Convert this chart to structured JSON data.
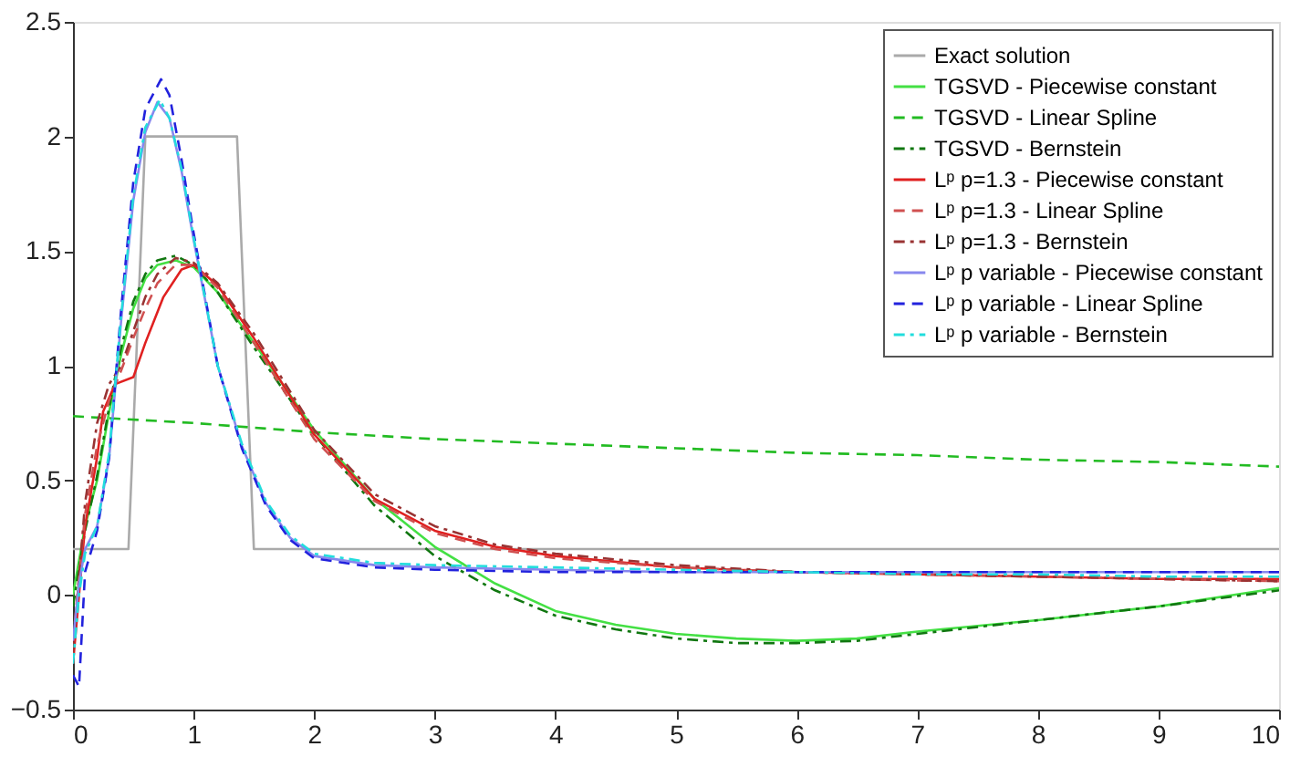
{
  "chart_data": {
    "type": "line",
    "xlim": [
      0,
      10
    ],
    "ylim": [
      -0.5,
      2.5
    ],
    "xticks": [
      0,
      1,
      2,
      3,
      4,
      5,
      6,
      7,
      8,
      9,
      10
    ],
    "yticks": [
      -0.5,
      0,
      0.5,
      1,
      1.5,
      2,
      2.5
    ],
    "grid": false,
    "legend": "top right",
    "marker": "none",
    "series": [
      {
        "name": "Exact solution",
        "color": "#aaaaaa",
        "line_style": "solid",
        "x": [
          0,
          0.46,
          0.6,
          1.36,
          1.5,
          10
        ],
        "values": [
          0.2,
          0.2,
          2,
          2,
          0.2,
          0.2
        ]
      },
      {
        "name": "TGSVD - Piecewise constant",
        "color": "#44e044",
        "line_style": "solid",
        "x": [
          0,
          0.1,
          0.2,
          0.3,
          0.4,
          0.5,
          0.6,
          0.7,
          0.85,
          1,
          1.2,
          1.5,
          2,
          2.5,
          3,
          3.5,
          4,
          4.5,
          5,
          5.5,
          6,
          6.5,
          7,
          8,
          9,
          10
        ],
        "values": [
          0,
          0.3,
          0.5,
          0.8,
          1.05,
          1.25,
          1.38,
          1.44,
          1.46,
          1.43,
          1.32,
          1.1,
          0.72,
          0.42,
          0.21,
          0.05,
          -0.07,
          -0.13,
          -0.17,
          -0.19,
          -0.2,
          -0.19,
          -0.16,
          -0.11,
          -0.05,
          0.03
        ]
      },
      {
        "name": "TGSVD - Linear Spline",
        "color": "#22bb22",
        "line_style": "dashed",
        "x": [
          0,
          1,
          2,
          3,
          4,
          5,
          6,
          7,
          8,
          9,
          10
        ],
        "values": [
          0.78,
          0.75,
          0.71,
          0.68,
          0.66,
          0.64,
          0.62,
          0.61,
          0.59,
          0.58,
          0.56
        ]
      },
      {
        "name": "TGSVD - Bernstein",
        "color": "#117711",
        "line_style": "dashdot",
        "x": [
          0,
          0.1,
          0.2,
          0.3,
          0.4,
          0.5,
          0.6,
          0.7,
          0.85,
          1,
          1.2,
          1.5,
          2,
          2.5,
          3,
          3.5,
          4,
          4.5,
          5,
          5.5,
          6,
          6.5,
          7,
          8,
          9,
          10
        ],
        "values": [
          -0.05,
          0.28,
          0.52,
          0.82,
          1.08,
          1.28,
          1.4,
          1.46,
          1.48,
          1.44,
          1.32,
          1.08,
          0.7,
          0.39,
          0.17,
          0.02,
          -0.09,
          -0.15,
          -0.19,
          -0.21,
          -0.21,
          -0.2,
          -0.17,
          -0.11,
          -0.05,
          0.02
        ]
      },
      {
        "name": "Lᵖ p=1.3 - Piecewise constant",
        "color": "#e02020",
        "line_style": "solid",
        "x": [
          0,
          0.1,
          0.2,
          0.25,
          0.35,
          0.5,
          0.6,
          0.75,
          0.9,
          1,
          1.2,
          1.5,
          2,
          2.5,
          3,
          3.5,
          4,
          5,
          6,
          7,
          8,
          9,
          10
        ],
        "values": [
          -0.3,
          0.3,
          0.6,
          0.8,
          0.92,
          0.95,
          1.1,
          1.3,
          1.42,
          1.44,
          1.35,
          1.12,
          0.7,
          0.42,
          0.28,
          0.21,
          0.17,
          0.12,
          0.1,
          0.09,
          0.08,
          0.07,
          0.07
        ]
      },
      {
        "name": "Lᵖ p=1.3 - Linear Spline",
        "color": "#d05050",
        "line_style": "dashed",
        "x": [
          0,
          0.1,
          0.2,
          0.3,
          0.4,
          0.5,
          0.6,
          0.7,
          0.85,
          1,
          1.2,
          1.5,
          2,
          2.5,
          3,
          3.5,
          4,
          5,
          6,
          7,
          8,
          9,
          10
        ],
        "values": [
          -0.2,
          0.35,
          0.65,
          0.85,
          0.98,
          1.12,
          1.25,
          1.36,
          1.44,
          1.44,
          1.34,
          1.1,
          0.68,
          0.41,
          0.27,
          0.2,
          0.16,
          0.12,
          0.1,
          0.09,
          0.08,
          0.07,
          0.06
        ]
      },
      {
        "name": "Lᵖ p=1.3 - Bernstein",
        "color": "#993333",
        "line_style": "dashdot",
        "x": [
          0,
          0.1,
          0.2,
          0.3,
          0.4,
          0.5,
          0.6,
          0.7,
          0.85,
          1,
          1.2,
          1.5,
          2,
          2.5,
          3,
          3.5,
          4,
          5,
          6,
          7,
          8,
          9,
          10
        ],
        "values": [
          -0.25,
          0.4,
          0.75,
          0.92,
          1.0,
          1.15,
          1.3,
          1.4,
          1.47,
          1.45,
          1.36,
          1.14,
          0.72,
          0.44,
          0.3,
          0.22,
          0.18,
          0.13,
          0.1,
          0.09,
          0.08,
          0.07,
          0.06
        ]
      },
      {
        "name": "Lᵖ p variable - Piecewise constant",
        "color": "#8888ee",
        "line_style": "solid",
        "x": [
          0,
          0.05,
          0.1,
          0.2,
          0.3,
          0.4,
          0.5,
          0.6,
          0.7,
          0.8,
          0.9,
          1,
          1.2,
          1.4,
          1.6,
          1.8,
          2,
          2.5,
          3,
          4,
          5,
          6,
          7,
          8,
          9,
          10
        ],
        "values": [
          -0.2,
          0.05,
          0.2,
          0.3,
          0.6,
          1.2,
          1.72,
          2.02,
          2.15,
          2.08,
          1.85,
          1.55,
          1.0,
          0.65,
          0.4,
          0.25,
          0.17,
          0.13,
          0.12,
          0.11,
          0.1,
          0.1,
          0.1,
          0.1,
          0.1,
          0.1
        ]
      },
      {
        "name": "Lᵖ p variable - Linear Spline",
        "color": "#2222dd",
        "line_style": "dashed",
        "x": [
          0,
          0.05,
          0.1,
          0.2,
          0.3,
          0.4,
          0.5,
          0.6,
          0.73,
          0.8,
          0.9,
          1,
          1.2,
          1.4,
          1.6,
          1.8,
          2,
          2.5,
          3,
          4,
          5,
          6,
          7,
          8,
          9,
          10
        ],
        "values": [
          -0.35,
          -0.4,
          0.1,
          0.28,
          0.6,
          1.25,
          1.8,
          2.12,
          2.25,
          2.18,
          1.9,
          1.58,
          1.0,
          0.64,
          0.39,
          0.24,
          0.16,
          0.12,
          0.11,
          0.1,
          0.1,
          0.1,
          0.1,
          0.1,
          0.1,
          0.1
        ]
      },
      {
        "name": "Lᵖ p variable - Bernstein",
        "color": "#22dddd",
        "line_style": "dashdot",
        "x": [
          0,
          0.05,
          0.1,
          0.2,
          0.3,
          0.4,
          0.5,
          0.6,
          0.72,
          0.8,
          0.9,
          1,
          1.2,
          1.4,
          1.6,
          1.8,
          2,
          2.5,
          3,
          4,
          5,
          6,
          7,
          8,
          9,
          10
        ],
        "values": [
          -0.3,
          0.0,
          0.18,
          0.3,
          0.62,
          1.22,
          1.74,
          2.04,
          2.16,
          2.08,
          1.86,
          1.56,
          1.0,
          0.66,
          0.41,
          0.26,
          0.18,
          0.14,
          0.13,
          0.12,
          0.11,
          0.1,
          0.09,
          0.09,
          0.08,
          0.08
        ]
      }
    ]
  }
}
